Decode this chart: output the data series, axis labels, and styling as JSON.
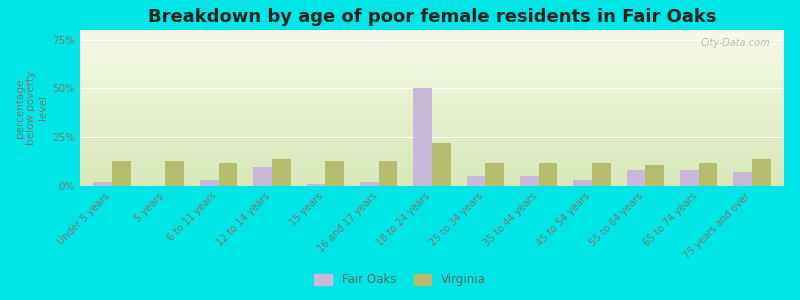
{
  "title": "Breakdown by age of poor female residents in Fair Oaks",
  "ylabel": "percentage\nbelow poverty\nlevel",
  "categories": [
    "Under 5 years",
    "5 years",
    "6 to 11 years",
    "12 to 14 years",
    "15 years",
    "16 and 17 years",
    "18 to 24 years",
    "25 to 34 years",
    "35 to 44 years",
    "45 to 54 years",
    "55 to 64 years",
    "65 to 74 years",
    "75 years and over"
  ],
  "fair_oaks": [
    2,
    0,
    3,
    10,
    1,
    2,
    50,
    5,
    5,
    3,
    8,
    8,
    7
  ],
  "virginia": [
    13,
    13,
    12,
    14,
    13,
    13,
    22,
    12,
    12,
    12,
    11,
    12,
    14
  ],
  "fair_oaks_color": "#c9b8d8",
  "virginia_color": "#b5bc6e",
  "background_top": "#f5f9e8",
  "background_bottom": "#d8e8b8",
  "outer_bg": "#00e5e5",
  "ylim": [
    0,
    80
  ],
  "yticks": [
    0,
    25,
    50,
    75
  ],
  "ytick_labels": [
    "0%",
    "25%",
    "50%",
    "75%"
  ],
  "bar_width": 0.35,
  "title_fontsize": 13,
  "label_fontsize": 7.5,
  "legend_fair_oaks": "Fair Oaks",
  "legend_virginia": "Virginia"
}
